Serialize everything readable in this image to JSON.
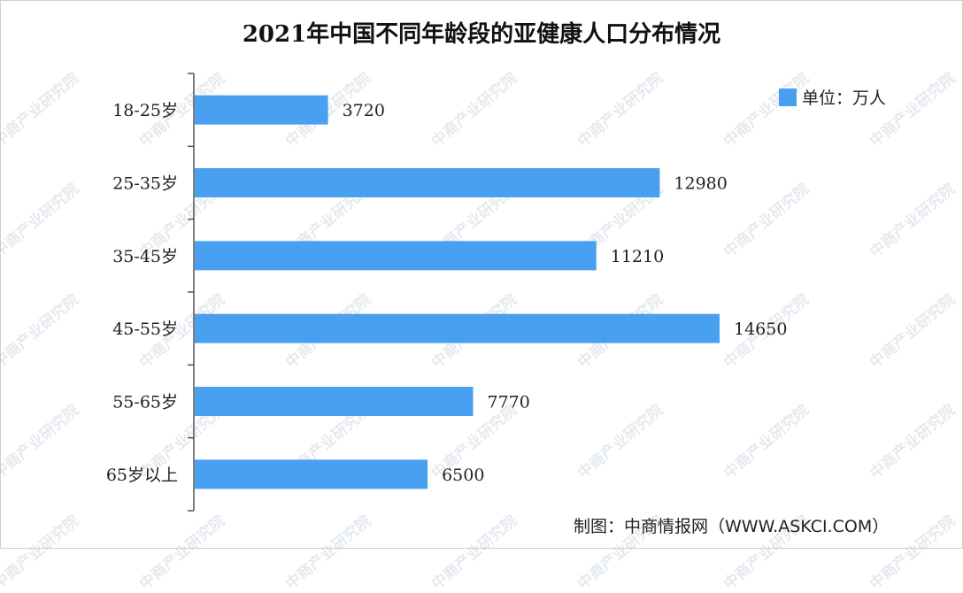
{
  "colors": {
    "bar": "#4aa0f0",
    "axis": "#555555",
    "text": "#222222",
    "watermark": "#aabbcc"
  },
  "watermark_text": "中商产业研究院",
  "source_text": "制图：中商情报网（WWW.ASKCI.COM）",
  "chart_data": {
    "type": "bar",
    "orientation": "horizontal",
    "title": "2021年中国不同年龄段的亚健康人口分布情况",
    "categories": [
      "18-25岁",
      "25-35岁",
      "35-45岁",
      "45-55岁",
      "55-65岁",
      "65岁以上"
    ],
    "series": [
      {
        "name": "单位：万人",
        "values": [
          3720,
          12980,
          11210,
          14650,
          7770,
          6500
        ]
      }
    ],
    "xlim": [
      0,
      16000
    ],
    "grid": false,
    "legend": "top-right",
    "data_labels": true
  }
}
